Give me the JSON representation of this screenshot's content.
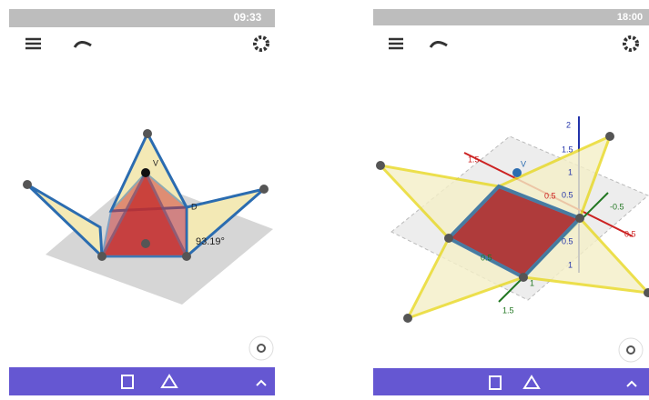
{
  "left": {
    "status_time": "09:33",
    "vertex_label": "V",
    "point_label": "D",
    "angle_label": "93.19°"
  },
  "right": {
    "status_time": "18:00",
    "vertex_label": "V",
    "z_axis_labels": [
      "2",
      "1.5",
      "1",
      "0.5",
      "0.5",
      "1"
    ],
    "x_axis_labels": [
      "1.5",
      "0.5",
      "-0.5",
      "0.5"
    ],
    "y_axis_labels": [
      "0.5",
      "1",
      "1.5"
    ]
  }
}
